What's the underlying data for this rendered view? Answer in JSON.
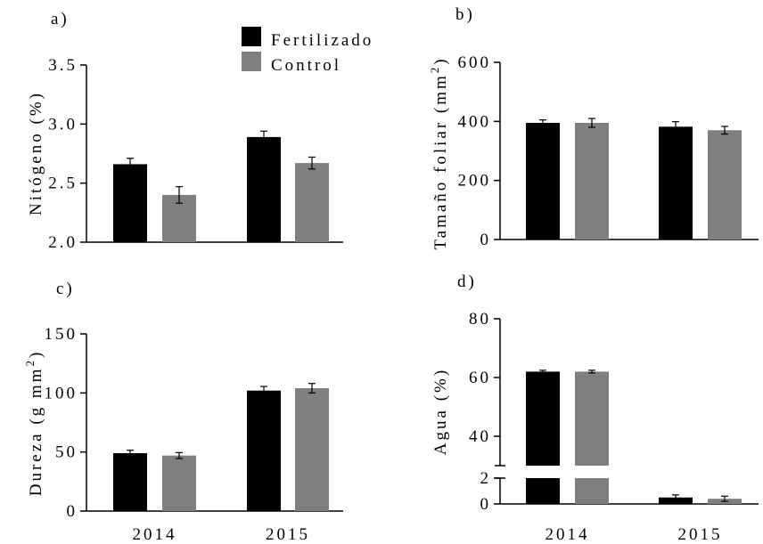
{
  "legend": [
    {
      "name": "Fertilizado",
      "color": "#000000"
    },
    {
      "name": "Control",
      "color": "#7f7f7f"
    }
  ],
  "chart_data": [
    {
      "type": "bar",
      "panel": "a)",
      "title": "",
      "ylabel": "Nitógeno (%)",
      "categories": [
        "2014",
        "2015"
      ],
      "show_categories": false,
      "ylim": [
        2.0,
        3.5
      ],
      "yticks": [
        "2.0",
        "2.5",
        "3.0",
        "3.5"
      ],
      "series": [
        {
          "name": "Fertilizado",
          "values": [
            2.66,
            2.89
          ],
          "errors": [
            0.05,
            0.05
          ]
        },
        {
          "name": "Control",
          "values": [
            2.4,
            2.67
          ],
          "errors": [
            0.07,
            0.05
          ]
        }
      ]
    },
    {
      "type": "bar",
      "panel": "b)",
      "title": "",
      "ylabel": "Tamaño foliar (mm",
      "ylabel_sup": "2",
      "ylabel_close": ")",
      "categories": [
        "2014",
        "2015"
      ],
      "show_categories": false,
      "ylim": [
        0,
        600
      ],
      "yticks": [
        "0",
        "200",
        "400",
        "600"
      ],
      "series": [
        {
          "name": "Fertilizado",
          "values": [
            395,
            382
          ],
          "errors": [
            10,
            17
          ]
        },
        {
          "name": "Control",
          "values": [
            395,
            370
          ],
          "errors": [
            15,
            13
          ]
        }
      ]
    },
    {
      "type": "bar",
      "panel": "c)",
      "title": "",
      "ylabel": "Dureza (g mm",
      "ylabel_sup": "2",
      "ylabel_close": ")",
      "categories": [
        "2014",
        "2015"
      ],
      "show_categories": true,
      "ylim": [
        0,
        150
      ],
      "yticks": [
        "0",
        "50",
        "100",
        "150"
      ],
      "series": [
        {
          "name": "Fertilizado",
          "values": [
            49,
            102
          ],
          "errors": [
            2.5,
            3.5
          ]
        },
        {
          "name": "Control",
          "values": [
            47,
            104
          ],
          "errors": [
            2.5,
            4
          ]
        }
      ]
    },
    {
      "type": "bar",
      "panel": "d)",
      "title": "",
      "ylabel": "Agua (%)",
      "categories": [
        "2014",
        "2015"
      ],
      "show_categories": true,
      "broken_axis": true,
      "ylim_lower": [
        0,
        2
      ],
      "ylim_upper": [
        30,
        80
      ],
      "yticks_lower": [
        "0",
        "2"
      ],
      "yticks_upper": [
        "40",
        "60",
        "80"
      ],
      "series": [
        {
          "name": "Fertilizado",
          "values": [
            62,
            0.5
          ],
          "errors": [
            0.4,
            0.2
          ]
        },
        {
          "name": "Control",
          "values": [
            62,
            0.4
          ],
          "errors": [
            0.4,
            0.2
          ]
        }
      ]
    }
  ]
}
